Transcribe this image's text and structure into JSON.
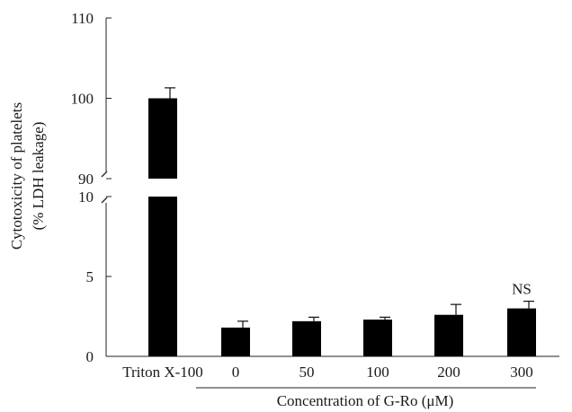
{
  "chart_data": {
    "type": "bar",
    "title": "",
    "ylabel_lines": [
      "Cytotoxicity of platelets",
      "(% LDH leakage)"
    ],
    "xlabel": "Concentration of G-Ro (μM)",
    "categories": [
      "Triton X-100",
      "0",
      "50",
      "100",
      "200",
      "300"
    ],
    "values": [
      100,
      1.8,
      2.2,
      2.3,
      2.6,
      3.0
    ],
    "errors": [
      1.3,
      0.4,
      0.25,
      0.15,
      0.65,
      0.45
    ],
    "bar_color": "#000000",
    "annotations": [
      {
        "category": "300",
        "text": "NS"
      }
    ],
    "y_axis_break": true,
    "y_segments": [
      {
        "range": [
          0,
          10
        ],
        "ticks": [
          "0",
          "5",
          "10"
        ]
      },
      {
        "range": [
          90,
          110
        ],
        "ticks": [
          "90",
          "100",
          "110"
        ]
      }
    ]
  }
}
